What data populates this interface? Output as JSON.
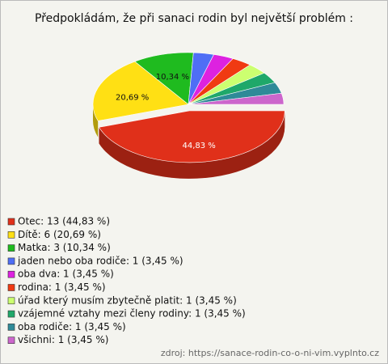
{
  "chart_data": {
    "type": "pie",
    "title": "Předpokládám, že při sanaci rodin byl největší problém :",
    "categories": [
      "Otec: 13 (44,83 %)",
      "Dítě: 6 (20,69 %)",
      "Matka: 3 (10,34 %)",
      "jaden nebo oba rodiče: 1 (3,45 %)",
      "oba dva: 1 (3,45 %)",
      "rodina: 1 (3,45 %)",
      "úřad který musím zbytečně platit: 1 (3,45 %)",
      "vzájemné vztahy mezi členy rodiny: 1 (3,45 %)",
      "oba rodiče: 1 (3,45 %)",
      "všichni: 1 (3,45 %)"
    ],
    "values": [
      44.83,
      20.69,
      10.34,
      3.45,
      3.45,
      3.45,
      3.45,
      3.45,
      3.45,
      3.45
    ],
    "value_labels": [
      "44,83 %",
      "20,69 %",
      "10,34 %",
      null,
      null,
      null,
      null,
      null,
      null,
      null
    ],
    "colors": [
      "#e0301a",
      "#ffe014",
      "#1fbb1f",
      "#4f6ef5",
      "#dd22e0",
      "#f03a12",
      "#ccff70",
      "#1fa86a",
      "#2f8a98",
      "#cc66cc"
    ],
    "source": "zdroj: https://sanace-rodin-co-o-ni-vim.vyplnto.cz"
  }
}
